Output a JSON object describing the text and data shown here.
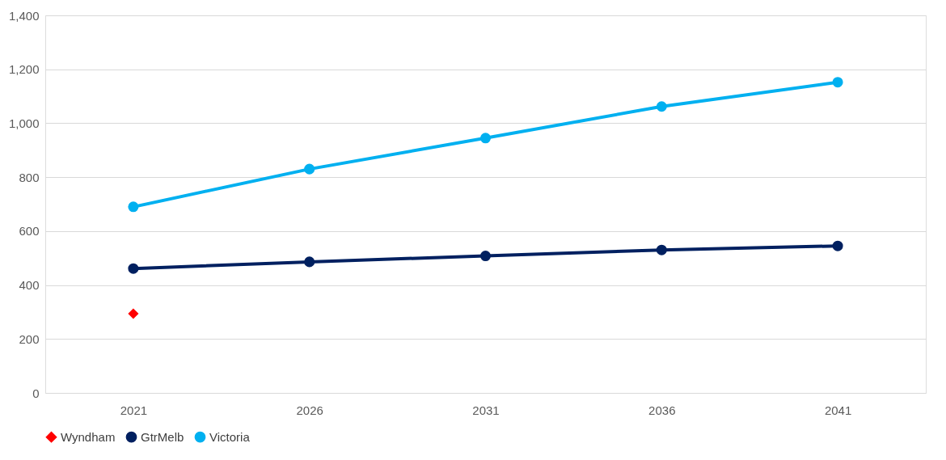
{
  "chart_data": {
    "type": "line",
    "categories": [
      "2021",
      "2026",
      "2031",
      "2036",
      "2041"
    ],
    "series": [
      {
        "name": "Wyndham",
        "type": "scatter",
        "marker": "diamond",
        "color": "#ff0000",
        "values": [
          294,
          null,
          null,
          null,
          null
        ]
      },
      {
        "name": "GtrMelb",
        "type": "line",
        "marker": "circle",
        "color": "#002060",
        "values": [
          461,
          486,
          508,
          530,
          545
        ]
      },
      {
        "name": "Victoria",
        "type": "line",
        "marker": "circle",
        "color": "#00b0f0",
        "values": [
          690,
          830,
          945,
          1062,
          1152
        ]
      }
    ],
    "ylim": [
      0,
      1400
    ],
    "yticks": [
      0,
      200,
      400,
      600,
      800,
      {
        "value": 1000,
        "label": "1,000"
      },
      {
        "value": 1200,
        "label": "1,200"
      },
      {
        "value": 1400,
        "label": "1,400"
      }
    ],
    "grid": "y",
    "legend": "bottom"
  }
}
